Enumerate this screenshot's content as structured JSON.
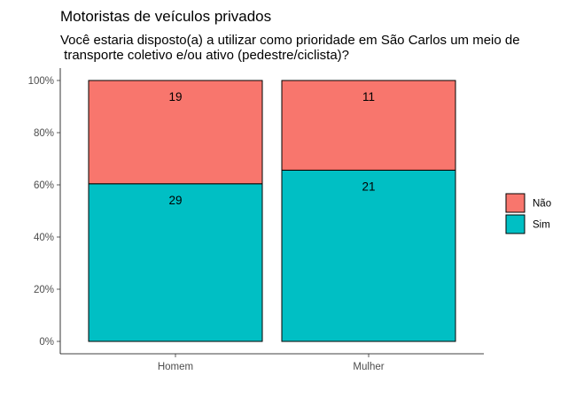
{
  "chart_data": {
    "type": "bar",
    "stacked": "percent",
    "title": "Motoristas de veículos privados",
    "subtitle": [
      "Você estaria disposto(a) a utilizar como prioridade em São Carlos um meio de",
      " transporte coletivo e/ou ativo (pedestre/ciclista)?"
    ],
    "xlabel": "",
    "ylabel": "",
    "categories": [
      "Homem",
      "Mulher"
    ],
    "series": [
      {
        "name": "Não",
        "values": [
          19,
          11
        ],
        "color": "#F8766D"
      },
      {
        "name": "Sim",
        "values": [
          29,
          21
        ],
        "color": "#00BFC4"
      }
    ],
    "stack_order_bottom_to_top": [
      "Sim",
      "Não"
    ],
    "ylim": [
      0,
      1
    ],
    "yticks": [
      "0%",
      "20%",
      "40%",
      "60%",
      "80%",
      "100%"
    ],
    "grid": false,
    "legend": {
      "placement": "right",
      "entries": [
        "Não",
        "Sim"
      ]
    }
  }
}
